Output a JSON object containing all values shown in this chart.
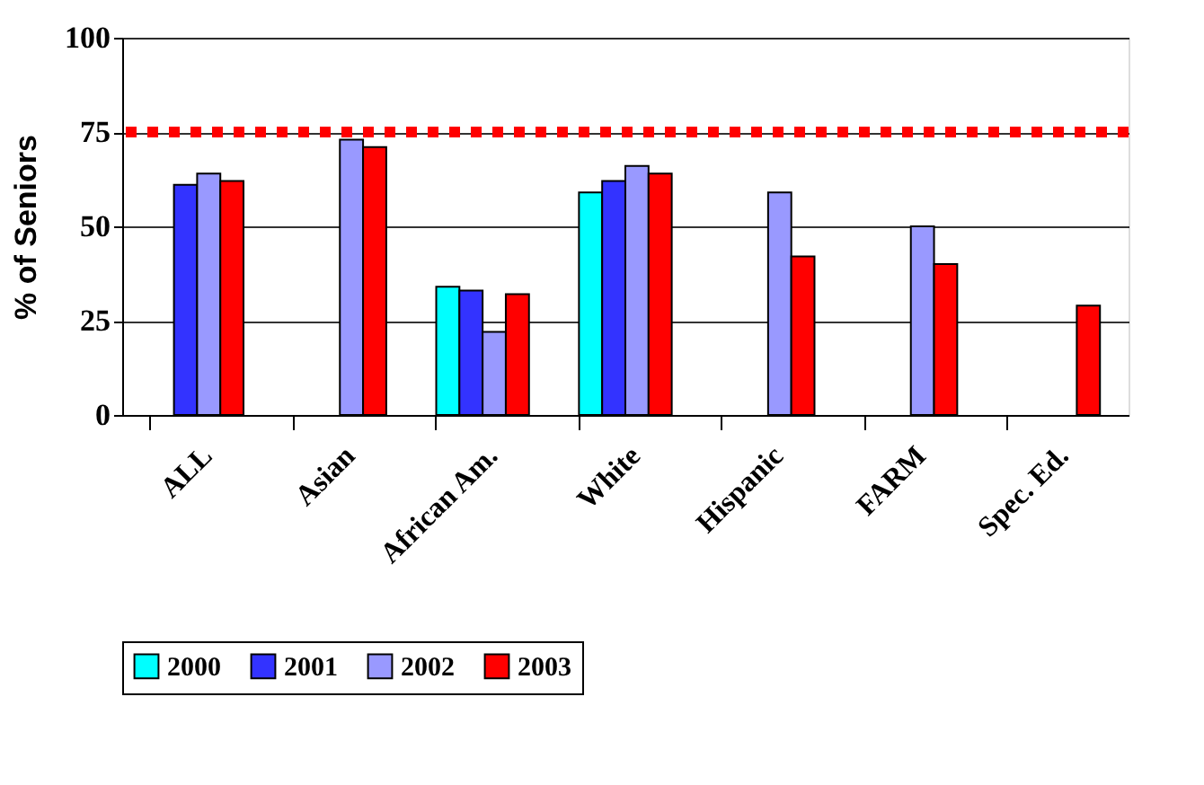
{
  "chart_data": {
    "type": "bar",
    "ylabel": "% of Seniors",
    "categories": [
      "ALL",
      "Asian",
      "African Am.",
      "White",
      "Hispanic",
      "FARM",
      "Spec. Ed."
    ],
    "series": [
      {
        "name": "2000",
        "color": "#00ffff",
        "values": [
          null,
          null,
          34,
          59,
          null,
          null,
          null
        ]
      },
      {
        "name": "2001",
        "color": "#3333ff",
        "values": [
          61,
          null,
          33,
          62,
          null,
          null,
          null
        ]
      },
      {
        "name": "2002",
        "color": "#9999ff",
        "values": [
          64,
          73,
          22,
          66,
          59,
          50,
          null
        ]
      },
      {
        "name": "2003",
        "color": "#ff0000",
        "values": [
          62,
          71,
          32,
          64,
          42,
          40,
          29
        ]
      }
    ],
    "ylim": [
      0,
      100
    ],
    "yticks": [
      0,
      25,
      50,
      75,
      100
    ],
    "grid": "y",
    "legend": "bottom",
    "ref_lines": [
      {
        "axis": "y",
        "value": 75,
        "color": "#ff0000",
        "line_style": "dotted"
      }
    ]
  }
}
